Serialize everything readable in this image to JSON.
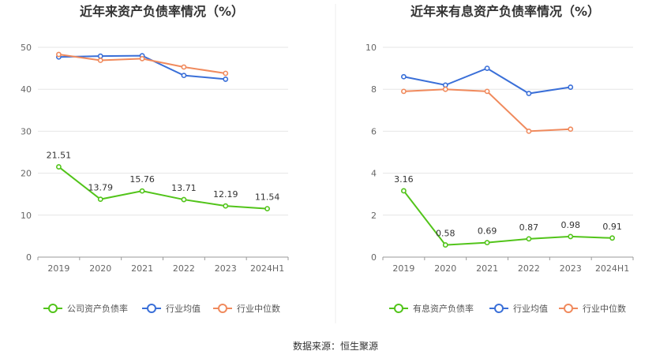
{
  "source_text": "数据来源：恒生聚源",
  "chart_data": [
    {
      "type": "line",
      "title": "近年来资产负债率情况（%）",
      "categories": [
        "2019",
        "2020",
        "2021",
        "2022",
        "2023",
        "2024H1"
      ],
      "ylim": [
        0,
        50
      ],
      "yticks": [
        0,
        10,
        20,
        30,
        40,
        50
      ],
      "grid": true,
      "legend_position": "bottom",
      "series": [
        {
          "name": "公司资产负债率",
          "color": "#52c41a",
          "values": [
            21.51,
            13.79,
            15.76,
            13.71,
            12.19,
            11.54
          ],
          "labels": [
            "21.51",
            "13.79",
            "15.76",
            "13.71",
            "12.19",
            "11.54"
          ]
        },
        {
          "name": "行业均值",
          "color": "#3a6fd8",
          "values": [
            47.7,
            47.9,
            48.0,
            43.3,
            42.4,
            null
          ]
        },
        {
          "name": "行业中位数",
          "color": "#f08a5d",
          "values": [
            48.3,
            46.9,
            47.3,
            45.3,
            43.8,
            null
          ]
        }
      ]
    },
    {
      "type": "line",
      "title": "近年来有息资产负债率情况（%）",
      "categories": [
        "2019",
        "2020",
        "2021",
        "2022",
        "2023",
        "2024H1"
      ],
      "ylim": [
        0,
        10
      ],
      "yticks": [
        0,
        2,
        4,
        6,
        8,
        10
      ],
      "grid": true,
      "legend_position": "bottom",
      "series": [
        {
          "name": "有息资产负债率",
          "color": "#52c41a",
          "values": [
            3.16,
            0.58,
            0.69,
            0.87,
            0.98,
            0.91
          ],
          "labels": [
            "3.16",
            "0.58",
            "0.69",
            "0.87",
            "0.98",
            "0.91"
          ]
        },
        {
          "name": "行业均值",
          "color": "#3a6fd8",
          "values": [
            8.6,
            8.2,
            9.0,
            7.8,
            8.1,
            null
          ]
        },
        {
          "name": "行业中位数",
          "color": "#f08a5d",
          "values": [
            7.9,
            8.0,
            7.9,
            6.0,
            6.1,
            null
          ]
        }
      ]
    }
  ]
}
